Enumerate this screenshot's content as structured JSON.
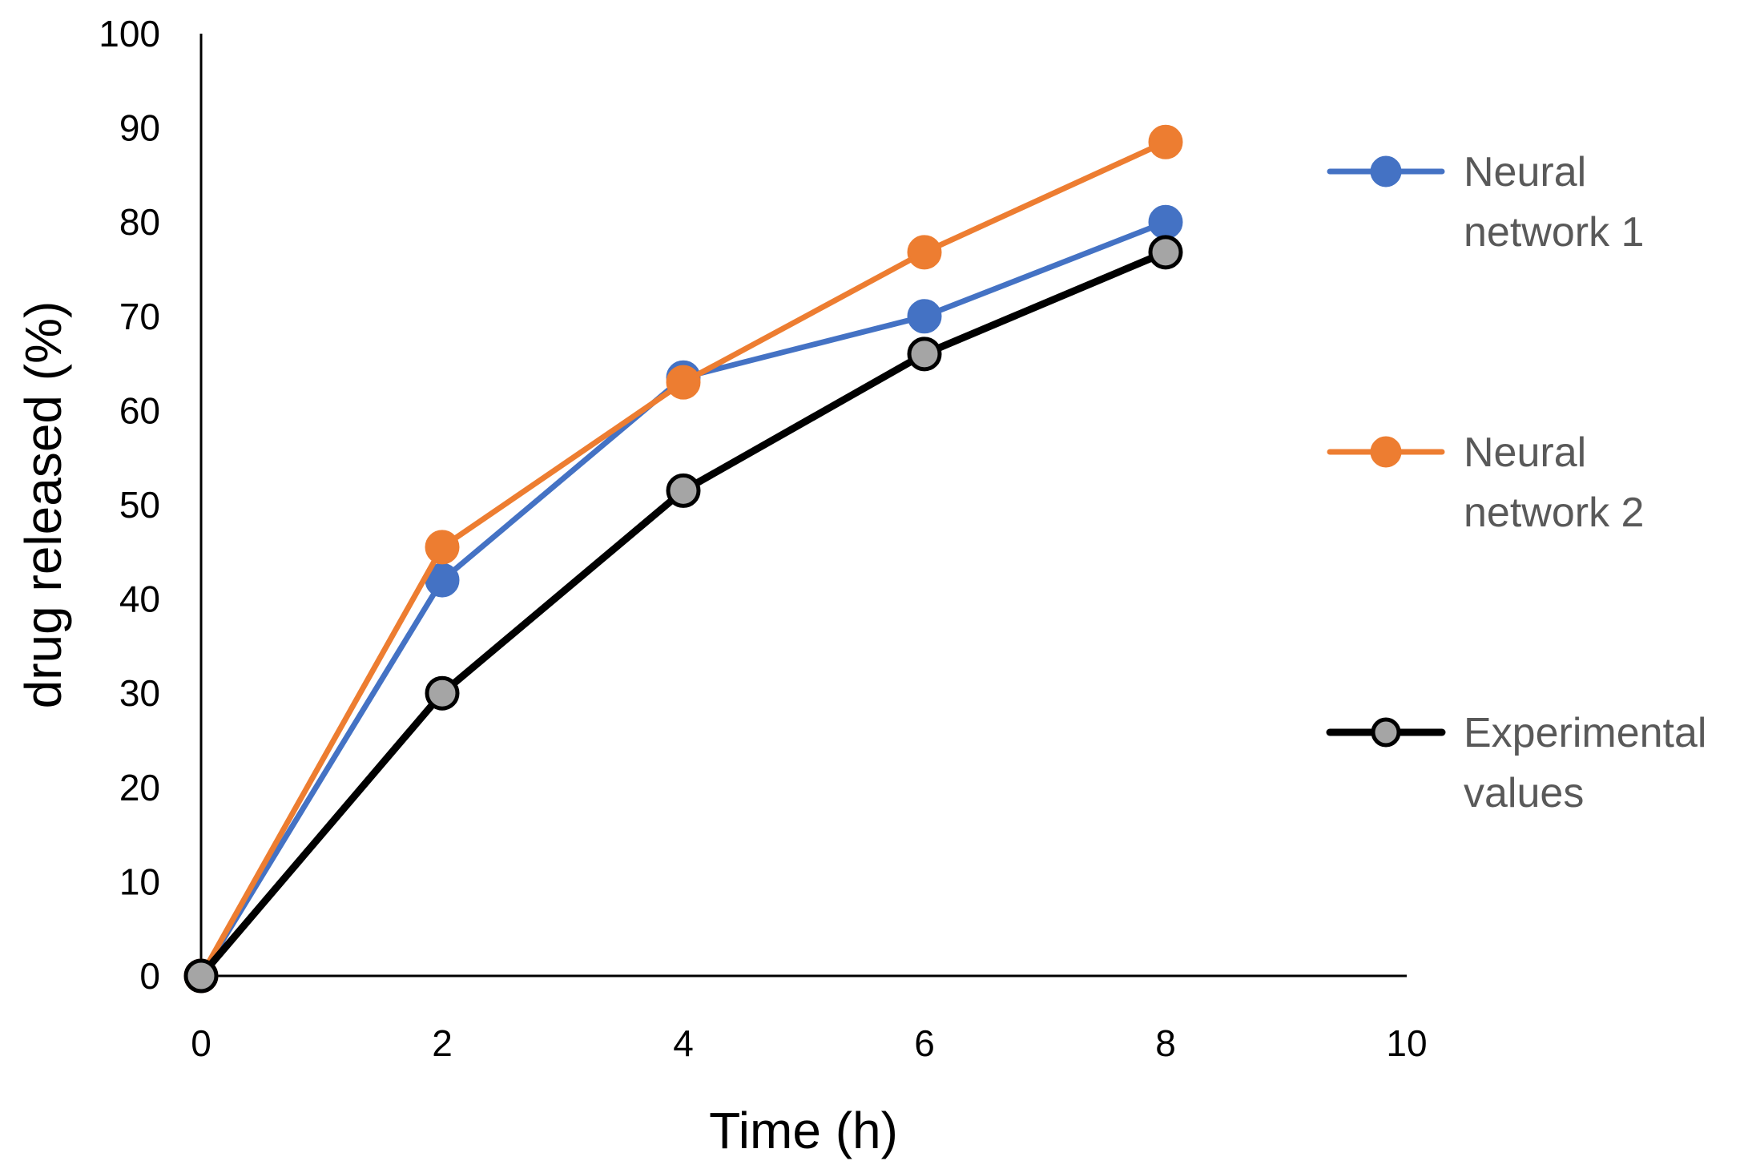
{
  "chart_data": {
    "type": "line",
    "title": "",
    "xlabel": "Time (h)",
    "ylabel": "drug released (%)",
    "xlim": [
      0,
      10
    ],
    "ylim": [
      0,
      100
    ],
    "xticks": [
      "0",
      "2",
      "4",
      "6",
      "8",
      "10"
    ],
    "yticks": [
      "0",
      "10",
      "20",
      "30",
      "40",
      "50",
      "60",
      "70",
      "80",
      "90",
      "100"
    ],
    "grid": false,
    "legend_position": "right",
    "x": [
      0,
      2,
      4,
      6,
      8
    ],
    "series": [
      {
        "name": "Neural network 1",
        "legend_lines": [
          "Neural",
          "network 1"
        ],
        "color": "#4472C4",
        "marker_fill": "#4472C4",
        "marker_stroke": "#4472C4",
        "values": [
          0,
          42,
          63.5,
          70,
          80
        ]
      },
      {
        "name": "Neural network 2",
        "legend_lines": [
          "Neural",
          "network 2"
        ],
        "color": "#ED7D31",
        "marker_fill": "#ED7D31",
        "marker_stroke": "#ED7D31",
        "values": [
          0,
          45.5,
          63,
          76.8,
          88.5
        ]
      },
      {
        "name": "Experimental values",
        "legend_lines": [
          "Experimental",
          "values"
        ],
        "color": "#000000",
        "marker_fill": "#A5A5A5",
        "marker_stroke": "#000000",
        "values": [
          0,
          30,
          51.5,
          66,
          76.8
        ]
      }
    ]
  }
}
